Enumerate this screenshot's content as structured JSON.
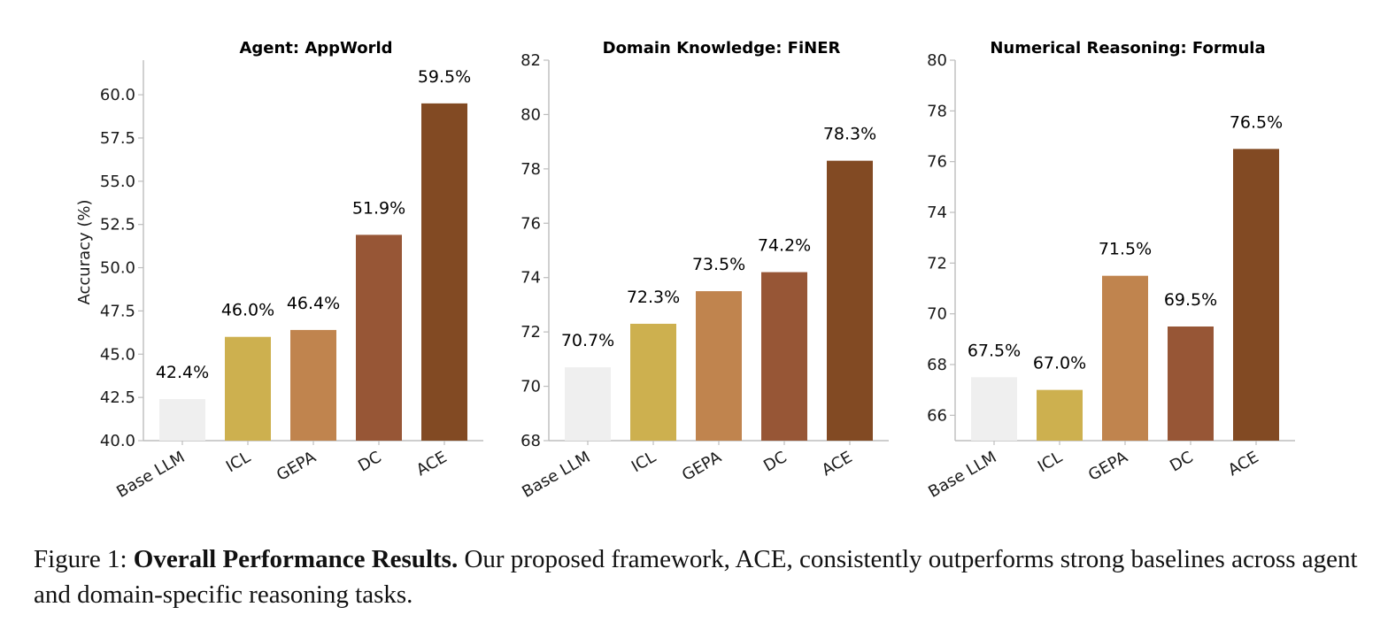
{
  "colors": [
    "#efefef",
    "#cdb04f",
    "#c0844e",
    "#975636",
    "#824a23"
  ],
  "chart_data": [
    {
      "type": "bar",
      "title": "Agent: AppWorld",
      "ylabel": "Accuracy (%)",
      "categories": [
        "Base LLM",
        "ICL",
        "GEPA",
        "DC",
        "ACE"
      ],
      "values": [
        42.4,
        46.0,
        46.4,
        51.9,
        59.5
      ],
      "value_labels": [
        "42.4%",
        "46.0%",
        "46.4%",
        "51.9%",
        "59.5%"
      ],
      "ylim": [
        40,
        62
      ],
      "yticks": [
        40.0,
        42.5,
        45.0,
        47.5,
        50.0,
        52.5,
        55.0,
        57.5,
        60.0
      ],
      "ytick_labels": [
        "40.0",
        "42.5",
        "45.0",
        "47.5",
        "50.0",
        "52.5",
        "55.0",
        "57.5",
        "60.0"
      ]
    },
    {
      "type": "bar",
      "title": "Domain Knowledge: FiNER",
      "ylabel": "",
      "categories": [
        "Base LLM",
        "ICL",
        "GEPA",
        "DC",
        "ACE"
      ],
      "values": [
        70.7,
        72.3,
        73.5,
        74.2,
        78.3
      ],
      "value_labels": [
        "70.7%",
        "72.3%",
        "73.5%",
        "74.2%",
        "78.3%"
      ],
      "ylim": [
        68,
        82
      ],
      "yticks": [
        68,
        70,
        72,
        74,
        76,
        78,
        80,
        82
      ],
      "ytick_labels": [
        "68",
        "70",
        "72",
        "74",
        "76",
        "78",
        "80",
        "82"
      ]
    },
    {
      "type": "bar",
      "title": "Numerical Reasoning: Formula",
      "ylabel": "",
      "categories": [
        "Base LLM",
        "ICL",
        "GEPA",
        "DC",
        "ACE"
      ],
      "values": [
        67.5,
        67.0,
        71.5,
        69.5,
        76.5
      ],
      "value_labels": [
        "67.5%",
        "67.0%",
        "71.5%",
        "69.5%",
        "76.5%"
      ],
      "ylim": [
        65,
        80
      ],
      "yticks": [
        66,
        68,
        70,
        72,
        74,
        76,
        78,
        80
      ],
      "ytick_labels": [
        "66",
        "68",
        "70",
        "72",
        "74",
        "76",
        "78",
        "80"
      ]
    }
  ],
  "caption": {
    "prefix": "Figure 1: ",
    "bold": "Overall Performance Results.",
    "text": " Our proposed framework, ACE, consistently outperforms strong baselines across agent and domain-specific reasoning tasks."
  }
}
